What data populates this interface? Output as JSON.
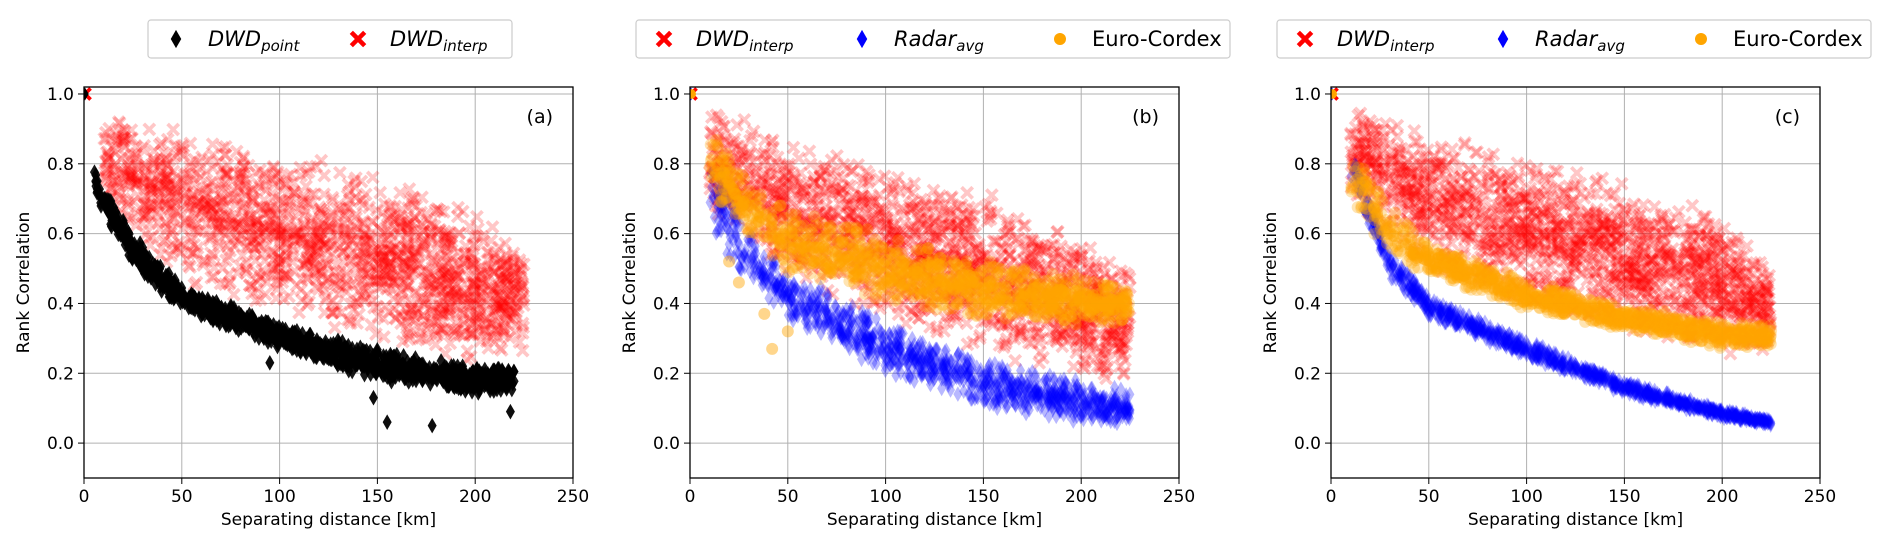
{
  "colors": {
    "dwd_point": "#000000",
    "dwd_interp": "#ff0000",
    "radar_avg": "#0000ff",
    "euro_cordex": "#ffa500",
    "grid": "#b0b0b0"
  },
  "chart_data": [
    {
      "type": "scatter",
      "panel_label": "(a)",
      "xlabel": "Separating distance [km]",
      "ylabel": "Rank Correlation",
      "xlim": [
        0,
        250
      ],
      "ylim": [
        -0.1,
        1.02
      ],
      "xticks": [
        0,
        50,
        100,
        150,
        200,
        250
      ],
      "yticks": [
        0.0,
        0.2,
        0.4,
        0.6,
        0.8,
        1.0
      ],
      "xtick_labels": [
        "0",
        "50",
        "100",
        "150",
        "200",
        "250"
      ],
      "ytick_labels": [
        "0.0",
        "0.2",
        "0.4",
        "0.6",
        "0.8",
        "1.0"
      ],
      "grid": true,
      "legend_position": "top, above plot",
      "legend": [
        {
          "main": "DWD",
          "sub": "point",
          "marker": "diamond",
          "color": "#000000"
        },
        {
          "main": "DWD",
          "sub": "interp",
          "marker": "x",
          "color": "#ff0000"
        }
      ],
      "series": [
        {
          "name": "DWD_interp",
          "marker": "x",
          "color": "#ff0000",
          "band": {
            "x": [
              10,
              50,
              100,
              150,
              200,
              225
            ],
            "upper": [
              0.97,
              0.9,
              0.85,
              0.78,
              0.68,
              0.55
            ],
            "lower": [
              0.68,
              0.45,
              0.36,
              0.28,
              0.22,
              0.25
            ]
          }
        },
        {
          "name": "DWD_point",
          "marker": "diamond",
          "color": "#000000",
          "band": {
            "x": [
              5,
              25,
              50,
              100,
              150,
              200,
              220
            ],
            "upper": [
              0.8,
              0.6,
              0.45,
              0.34,
              0.27,
              0.22,
              0.22
            ],
            "lower": [
              0.7,
              0.5,
              0.38,
              0.27,
              0.18,
              0.14,
              0.14
            ]
          },
          "outliers": [
            {
              "x": 95,
              "y": 0.23
            },
            {
              "x": 155,
              "y": 0.06
            },
            {
              "x": 178,
              "y": 0.05
            },
            {
              "x": 148,
              "y": 0.13
            },
            {
              "x": 218,
              "y": 0.09
            }
          ]
        }
      ]
    },
    {
      "type": "scatter",
      "panel_label": "(b)",
      "xlabel": "Separating distance [km]",
      "ylabel": "Rank Correlation",
      "xlim": [
        0,
        250
      ],
      "ylim": [
        -0.1,
        1.02
      ],
      "xticks": [
        0,
        50,
        100,
        150,
        200,
        250
      ],
      "yticks": [
        0.0,
        0.2,
        0.4,
        0.6,
        0.8,
        1.0
      ],
      "xtick_labels": [
        "0",
        "50",
        "100",
        "150",
        "200",
        "250"
      ],
      "ytick_labels": [
        "0.0",
        "0.2",
        "0.4",
        "0.6",
        "0.8",
        "1.0"
      ],
      "grid": true,
      "legend_position": "top, above plot",
      "legend": [
        {
          "main": "DWD",
          "sub": "interp",
          "marker": "x",
          "color": "#ff0000"
        },
        {
          "main": "Radar",
          "sub": "avg",
          "marker": "diamond",
          "color": "#0000ff"
        },
        {
          "main": "Euro-Cordex",
          "sub": "",
          "marker": "circle",
          "color": "#ffa500"
        }
      ],
      "series": [
        {
          "name": "DWD_interp",
          "marker": "x",
          "color": "#ff0000",
          "band": {
            "x": [
              10,
              50,
              100,
              150,
              200,
              225
            ],
            "upper": [
              0.97,
              0.88,
              0.8,
              0.73,
              0.62,
              0.5
            ],
            "lower": [
              0.65,
              0.45,
              0.35,
              0.25,
              0.17,
              0.18
            ]
          }
        },
        {
          "name": "Radar_avg",
          "marker": "diamond",
          "color": "#0000ff",
          "band": {
            "x": [
              10,
              30,
              50,
              100,
              150,
              200,
              225
            ],
            "upper": [
              0.85,
              0.62,
              0.5,
              0.35,
              0.25,
              0.18,
              0.15
            ],
            "lower": [
              0.6,
              0.45,
              0.34,
              0.2,
              0.1,
              0.05,
              0.05
            ]
          }
        },
        {
          "name": "Euro-Cordex",
          "marker": "circle",
          "color": "#ffa500",
          "band": {
            "x": [
              10,
              30,
              50,
              100,
              150,
              200,
              225
            ],
            "upper": [
              0.92,
              0.75,
              0.68,
              0.6,
              0.53,
              0.48,
              0.46
            ],
            "lower": [
              0.72,
              0.58,
              0.48,
              0.4,
              0.35,
              0.33,
              0.33
            ]
          },
          "outliers": [
            {
              "x": 25,
              "y": 0.46
            },
            {
              "x": 38,
              "y": 0.37
            },
            {
              "x": 42,
              "y": 0.27
            },
            {
              "x": 50,
              "y": 0.32
            },
            {
              "x": 20,
              "y": 0.52
            }
          ]
        }
      ]
    },
    {
      "type": "scatter",
      "panel_label": "(c)",
      "xlabel": "Separating distance [km]",
      "ylabel": "Rank Correlation",
      "xlim": [
        0,
        250
      ],
      "ylim": [
        -0.1,
        1.02
      ],
      "xticks": [
        0,
        50,
        100,
        150,
        200,
        250
      ],
      "yticks": [
        0.0,
        0.2,
        0.4,
        0.6,
        0.8,
        1.0
      ],
      "xtick_labels": [
        "0",
        "50",
        "100",
        "150",
        "200",
        "250"
      ],
      "ytick_labels": [
        "0.0",
        "0.2",
        "0.4",
        "0.6",
        "0.8",
        "1.0"
      ],
      "grid": true,
      "legend_position": "top, above plot",
      "legend": [
        {
          "main": "DWD",
          "sub": "interp",
          "marker": "x",
          "color": "#ff0000"
        },
        {
          "main": "Radar",
          "sub": "avg",
          "marker": "diamond",
          "color": "#0000ff"
        },
        {
          "main": "Euro-Cordex",
          "sub": "",
          "marker": "circle",
          "color": "#ffa500"
        }
      ],
      "series": [
        {
          "name": "DWD_interp",
          "marker": "x",
          "color": "#ff0000",
          "band": {
            "x": [
              10,
              50,
              100,
              150,
              200,
              225
            ],
            "upper": [
              0.97,
              0.9,
              0.83,
              0.76,
              0.66,
              0.52
            ],
            "lower": [
              0.7,
              0.5,
              0.4,
              0.32,
              0.25,
              0.26
            ]
          }
        },
        {
          "name": "Radar_avg",
          "marker": "diamond",
          "color": "#0000ff",
          "band": {
            "x": [
              10,
              30,
              50,
              100,
              150,
              200,
              225
            ],
            "upper": [
              0.85,
              0.55,
              0.42,
              0.3,
              0.18,
              0.1,
              0.07
            ],
            "lower": [
              0.75,
              0.47,
              0.36,
              0.24,
              0.14,
              0.07,
              0.05
            ]
          }
        },
        {
          "name": "Euro-Cordex",
          "marker": "circle",
          "color": "#ffa500",
          "band": {
            "x": [
              10,
              30,
              50,
              100,
              150,
              200,
              225
            ],
            "upper": [
              0.85,
              0.68,
              0.58,
              0.47,
              0.4,
              0.35,
              0.34
            ],
            "lower": [
              0.66,
              0.55,
              0.47,
              0.38,
              0.32,
              0.27,
              0.27
            ]
          }
        }
      ]
    }
  ]
}
